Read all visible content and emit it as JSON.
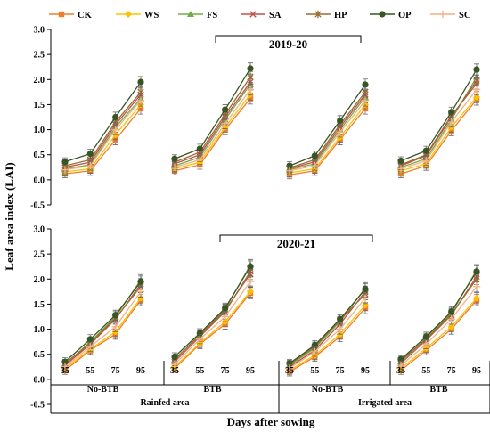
{
  "chart_data": {
    "type": "line",
    "ylabel": "Leaf area index (LAI)",
    "xlabel": "Days after sowing",
    "x": [
      35,
      55,
      75,
      95
    ],
    "ylim": [
      -0.5,
      3.0
    ],
    "yticks": [
      "3.0",
      "2.5",
      "2.0",
      "1.5",
      "1.0",
      "0.5",
      "0.0",
      "-0.5"
    ],
    "legend": {
      "position": "top",
      "entries": [
        {
          "name": "CK",
          "color": "#ED7D31",
          "marker": "square"
        },
        {
          "name": "WS",
          "color": "#FFC000",
          "marker": "diamond"
        },
        {
          "name": "FS",
          "color": "#70AD47",
          "marker": "triangle"
        },
        {
          "name": "SA",
          "color": "#C0504D",
          "marker": "x"
        },
        {
          "name": "HP",
          "color": "#9C6B30",
          "marker": "star"
        },
        {
          "name": "OP",
          "color": "#375623",
          "marker": "circle"
        },
        {
          "name": "SC",
          "color": "#F4B183",
          "marker": "plus"
        }
      ]
    },
    "groups": [
      {
        "treatment": "No-BTB",
        "area": "Rainfed area"
      },
      {
        "treatment": "BTB",
        "area": "Rainfed area"
      },
      {
        "treatment": "No-BTB",
        "area": "Irrigated area"
      },
      {
        "treatment": "BTB",
        "area": "Irrigated area"
      }
    ],
    "areas": [
      "Rainfed area",
      "Irrigated area"
    ],
    "panels": [
      {
        "season": "2019-20",
        "groups": [
          {
            "CK": [
              0.12,
              0.18,
              0.8,
              1.42
            ],
            "WS": [
              0.16,
              0.22,
              0.9,
              1.5
            ],
            "FS": [
              0.22,
              0.3,
              1.05,
              1.62
            ],
            "SA": [
              0.25,
              0.35,
              1.1,
              1.7
            ],
            "HP": [
              0.28,
              0.4,
              1.15,
              1.75
            ],
            "OP": [
              0.36,
              0.52,
              1.25,
              1.95
            ],
            "SC": [
              0.2,
              0.28,
              1.0,
              1.58
            ]
          },
          {
            "CK": [
              0.18,
              0.3,
              1.0,
              1.62
            ],
            "WS": [
              0.22,
              0.35,
              1.05,
              1.7
            ],
            "FS": [
              0.28,
              0.45,
              1.2,
              1.9
            ],
            "SA": [
              0.32,
              0.5,
              1.25,
              1.95
            ],
            "HP": [
              0.35,
              0.55,
              1.3,
              2.05
            ],
            "OP": [
              0.42,
              0.62,
              1.4,
              2.22
            ],
            "SC": [
              0.25,
              0.4,
              1.12,
              1.8
            ]
          },
          {
            "CK": [
              0.1,
              0.18,
              0.8,
              1.42
            ],
            "WS": [
              0.14,
              0.22,
              0.85,
              1.5
            ],
            "FS": [
              0.2,
              0.32,
              1.0,
              1.65
            ],
            "SA": [
              0.22,
              0.36,
              1.05,
              1.7
            ],
            "HP": [
              0.24,
              0.4,
              1.1,
              1.75
            ],
            "OP": [
              0.28,
              0.48,
              1.18,
              1.9
            ],
            "SC": [
              0.18,
              0.28,
              0.95,
              1.58
            ]
          },
          {
            "CK": [
              0.12,
              0.28,
              0.98,
              1.6
            ],
            "WS": [
              0.18,
              0.32,
              1.05,
              1.65
            ],
            "FS": [
              0.25,
              0.42,
              1.2,
              2.05
            ],
            "SA": [
              0.28,
              0.48,
              1.25,
              1.98
            ],
            "HP": [
              0.3,
              0.5,
              1.28,
              1.92
            ],
            "OP": [
              0.38,
              0.58,
              1.35,
              2.2
            ],
            "SC": [
              0.22,
              0.38,
              1.15,
              1.8
            ]
          }
        ]
      },
      {
        "season": "2020-21",
        "groups": [
          {
            "CK": [
              0.18,
              0.58,
              0.9,
              1.58
            ],
            "WS": [
              0.22,
              0.6,
              0.95,
              1.62
            ],
            "FS": [
              0.3,
              0.75,
              1.25,
              1.98
            ],
            "SA": [
              0.28,
              0.7,
              1.2,
              1.9
            ],
            "HP": [
              0.32,
              0.72,
              1.22,
              1.85
            ],
            "OP": [
              0.35,
              0.8,
              1.28,
              1.95
            ],
            "SC": [
              0.25,
              0.65,
              1.05,
              1.75
            ]
          },
          {
            "CK": [
              0.22,
              0.7,
              1.1,
              1.72
            ],
            "WS": [
              0.25,
              0.72,
              1.15,
              1.75
            ],
            "FS": [
              0.38,
              0.9,
              1.4,
              2.28
            ],
            "SA": [
              0.35,
              0.85,
              1.35,
              2.15
            ],
            "HP": [
              0.4,
              0.88,
              1.38,
              2.1
            ],
            "OP": [
              0.45,
              0.92,
              1.42,
              2.25
            ],
            "SC": [
              0.3,
              0.8,
              1.25,
              1.95
            ]
          },
          {
            "CK": [
              0.15,
              0.45,
              0.85,
              1.42
            ],
            "WS": [
              0.18,
              0.48,
              0.9,
              1.48
            ],
            "FS": [
              0.28,
              0.62,
              1.15,
              1.82
            ],
            "SA": [
              0.25,
              0.58,
              1.1,
              1.75
            ],
            "HP": [
              0.3,
              0.65,
              1.18,
              1.7
            ],
            "OP": [
              0.32,
              0.68,
              1.2,
              1.8
            ],
            "SC": [
              0.22,
              0.55,
              1.0,
              1.62
            ]
          },
          {
            "CK": [
              0.18,
              0.58,
              1.0,
              1.58
            ],
            "WS": [
              0.22,
              0.62,
              1.05,
              1.62
            ],
            "FS": [
              0.35,
              0.82,
              1.32,
              2.18
            ],
            "SA": [
              0.32,
              0.78,
              1.28,
              2.05
            ],
            "HP": [
              0.38,
              0.8,
              1.3,
              2.0
            ],
            "OP": [
              0.4,
              0.85,
              1.35,
              2.15
            ],
            "SC": [
              0.28,
              0.7,
              1.2,
              1.85
            ]
          }
        ]
      }
    ]
  }
}
